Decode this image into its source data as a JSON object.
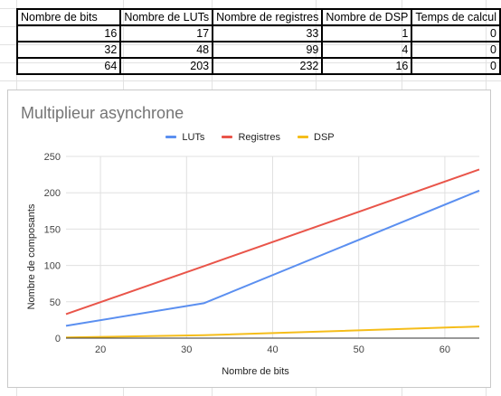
{
  "table": {
    "headers": [
      "Nombre de bits",
      "Nombre de LUTs",
      "Nombre de registres",
      "Nombre de DSP",
      "Temps de calcul"
    ],
    "rows": [
      [
        "16",
        "17",
        "33",
        "1",
        "0"
      ],
      [
        "32",
        "48",
        "99",
        "4",
        "0"
      ],
      [
        "64",
        "203",
        "232",
        "16",
        "0"
      ]
    ]
  },
  "chart_data": {
    "type": "line",
    "title": "Multiplieur asynchrone",
    "xlabel": "Nombre de bits",
    "ylabel": "Nombre de composants",
    "x": [
      16,
      32,
      64
    ],
    "xlim": [
      16,
      64
    ],
    "ylim": [
      0,
      250
    ],
    "xticks": [
      "20",
      "30",
      "40",
      "50",
      "60"
    ],
    "yticks": [
      "0",
      "50",
      "100",
      "150",
      "200",
      "250"
    ],
    "grid": true,
    "legend_position": "top",
    "series": [
      {
        "name": "LUTs",
        "values": [
          17,
          48,
          203
        ],
        "color": "#5b8ff0"
      },
      {
        "name": "Registres",
        "values": [
          33,
          99,
          232
        ],
        "color": "#e9554a"
      },
      {
        "name": "DSP",
        "values": [
          1,
          4,
          16
        ],
        "color": "#f5bd1a"
      }
    ]
  }
}
